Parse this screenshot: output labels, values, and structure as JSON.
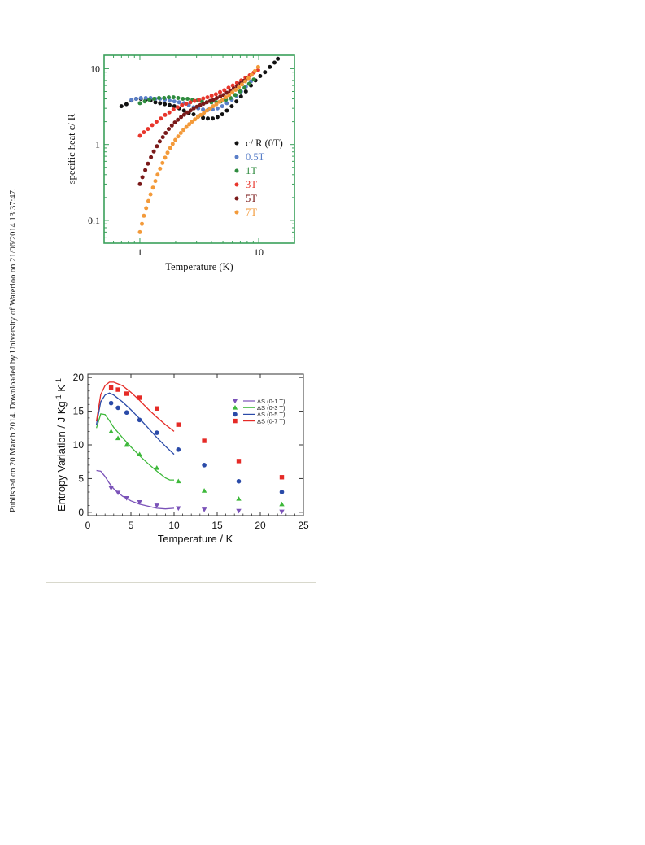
{
  "side_note": "Published on 20 March 2014. Downloaded by University of Waterloo on 21/06/2014 13:37:47.",
  "chart_data": [
    {
      "type": "scatter",
      "title": "",
      "xlabel": "Temperature (K)",
      "ylabel": "specific heat c/ R",
      "xscale": "log",
      "yscale": "log",
      "xlim": [
        0.5,
        20
      ],
      "ylim": [
        0.05,
        15
      ],
      "xticks": [
        1,
        10
      ],
      "xtick_labels": [
        "1",
        "10"
      ],
      "yticks": [
        0.1,
        1,
        10
      ],
      "ytick_labels": [
        "0.1",
        "1",
        "10"
      ],
      "grid": false,
      "legend_position": "right-middle",
      "frame_color": "#3aa05a",
      "series": [
        {
          "name": "c/ R (0T)",
          "color": "#111111",
          "x": [
            0.7,
            0.77,
            0.85,
            0.93,
            1.02,
            1.12,
            1.23,
            1.35,
            1.48,
            1.62,
            1.78,
            1.95,
            2.14,
            2.35,
            2.58,
            2.83,
            3.1,
            3.4,
            3.73,
            4.1,
            4.5,
            4.93,
            5.4,
            5.93,
            6.5,
            7.1,
            7.8,
            8.6,
            9.4,
            10.3,
            11.3,
            12.4,
            13.6,
            14.5
          ],
          "y": [
            3.2,
            3.4,
            3.8,
            4.0,
            4.0,
            3.9,
            3.8,
            3.6,
            3.5,
            3.4,
            3.3,
            3.2,
            3.0,
            2.8,
            2.6,
            2.5,
            2.35,
            2.25,
            2.2,
            2.2,
            2.3,
            2.5,
            2.8,
            3.2,
            3.7,
            4.3,
            5.0,
            6.0,
            7.0,
            8.0,
            9.0,
            10.5,
            12.0,
            13.5
          ]
        },
        {
          "name": "0.5T",
          "color": "#5a7fc8",
          "x": [
            0.85,
            0.93,
            1.02,
            1.12,
            1.23,
            1.35,
            1.48,
            1.62,
            1.78,
            1.95,
            2.14,
            2.35,
            2.58,
            2.83,
            3.1,
            3.4,
            3.73,
            4.1,
            4.5,
            4.93,
            5.4,
            5.93,
            6.5,
            7.1,
            7.8,
            8.6
          ],
          "y": [
            3.9,
            4.0,
            4.1,
            4.1,
            4.1,
            4.0,
            4.0,
            3.9,
            3.8,
            3.7,
            3.6,
            3.5,
            3.3,
            3.1,
            3.0,
            2.9,
            2.85,
            2.9,
            3.0,
            3.2,
            3.5,
            3.9,
            4.4,
            5.0,
            5.8,
            6.8
          ]
        },
        {
          "name": "1T",
          "color": "#2e8b3e",
          "x": [
            1.0,
            1.1,
            1.2,
            1.32,
            1.45,
            1.6,
            1.75,
            1.92,
            2.1,
            2.3,
            2.52,
            2.77,
            3.04,
            3.33,
            3.65,
            4.0,
            4.4,
            4.8,
            5.3,
            5.8,
            6.35,
            6.95,
            7.6,
            8.3,
            9.1
          ],
          "y": [
            3.5,
            3.7,
            3.9,
            4.0,
            4.1,
            4.1,
            4.2,
            4.2,
            4.1,
            4.0,
            4.0,
            3.9,
            3.8,
            3.7,
            3.6,
            3.6,
            3.6,
            3.7,
            3.9,
            4.1,
            4.5,
            5.0,
            5.6,
            6.3,
            7.2
          ]
        },
        {
          "name": "3T",
          "color": "#e8362c",
          "x": [
            1.0,
            1.08,
            1.17,
            1.27,
            1.38,
            1.5,
            1.63,
            1.77,
            1.92,
            2.08,
            2.26,
            2.45,
            2.66,
            2.89,
            3.14,
            3.41,
            3.7,
            4.02,
            4.36,
            4.73,
            5.14,
            5.58,
            6.05,
            6.57,
            7.13,
            7.74,
            8.4,
            9.1,
            9.9
          ],
          "y": [
            1.3,
            1.45,
            1.6,
            1.8,
            2.0,
            2.2,
            2.45,
            2.65,
            2.9,
            3.1,
            3.3,
            3.45,
            3.6,
            3.75,
            3.9,
            4.05,
            4.2,
            4.4,
            4.6,
            4.9,
            5.2,
            5.6,
            6.0,
            6.5,
            7.0,
            7.6,
            8.2,
            8.9,
            9.6
          ]
        },
        {
          "name": "5T",
          "color": "#7a1a1a",
          "x": [
            1.0,
            1.05,
            1.11,
            1.17,
            1.24,
            1.31,
            1.39,
            1.47,
            1.56,
            1.65,
            1.75,
            1.86,
            1.97,
            2.09,
            2.22,
            2.36,
            2.51,
            2.67,
            2.84,
            3.02,
            3.22,
            3.43,
            3.66,
            3.9,
            4.16,
            4.44,
            4.74,
            5.06,
            5.4,
            5.77,
            6.16,
            6.58,
            7.03,
            7.5,
            8.0
          ],
          "y": [
            0.3,
            0.37,
            0.46,
            0.56,
            0.68,
            0.81,
            0.95,
            1.1,
            1.25,
            1.42,
            1.6,
            1.78,
            1.95,
            2.12,
            2.3,
            2.47,
            2.65,
            2.82,
            3.0,
            3.15,
            3.3,
            3.45,
            3.6,
            3.75,
            3.9,
            4.1,
            4.3,
            4.5,
            4.8,
            5.1,
            5.5,
            5.9,
            6.4,
            6.9,
            7.5
          ]
        },
        {
          "name": "7T",
          "color": "#f39a3a",
          "x": [
            1.0,
            1.04,
            1.08,
            1.13,
            1.18,
            1.23,
            1.29,
            1.35,
            1.41,
            1.48,
            1.55,
            1.63,
            1.71,
            1.8,
            1.89,
            1.99,
            2.1,
            2.21,
            2.33,
            2.46,
            2.6,
            2.75,
            2.91,
            3.08,
            3.26,
            3.46,
            3.67,
            3.9,
            4.14,
            4.4,
            4.68,
            4.98,
            5.3,
            5.64,
            6.0,
            6.39,
            6.8,
            7.24,
            7.7,
            8.2,
            8.73,
            9.3,
            9.9
          ],
          "y": [
            0.07,
            0.09,
            0.115,
            0.145,
            0.18,
            0.22,
            0.27,
            0.33,
            0.4,
            0.48,
            0.57,
            0.67,
            0.78,
            0.9,
            1.02,
            1.15,
            1.28,
            1.42,
            1.56,
            1.7,
            1.85,
            2.0,
            2.15,
            2.3,
            2.45,
            2.62,
            2.8,
            3.0,
            3.2,
            3.4,
            3.65,
            3.9,
            4.2,
            4.5,
            4.85,
            5.25,
            5.7,
            6.2,
            6.8,
            7.5,
            8.3,
            9.3,
            10.5
          ]
        }
      ]
    },
    {
      "type": "scatter",
      "title": "",
      "xlabel": "Temperature / K",
      "ylabel_parts": [
        "Entropy Variation / J Kg",
        "-1",
        " K",
        "-1"
      ],
      "xlim": [
        0,
        25
      ],
      "ylim": [
        -0.5,
        20.5
      ],
      "xticks": [
        0,
        5,
        10,
        15,
        20,
        25
      ],
      "xtick_labels": [
        "0",
        "5",
        "10",
        "15",
        "20",
        "25"
      ],
      "yticks": [
        0,
        5,
        10,
        15,
        20
      ],
      "ytick_labels": [
        "0",
        "5",
        "10",
        "15",
        "20"
      ],
      "grid": false,
      "legend_position": "top-right",
      "series": [
        {
          "name": "ΔS (0-1 T)",
          "color": "#7a52b8",
          "marker": "triangle-down",
          "points_x": [
            2.7,
            3.5,
            4.5,
            6.0,
            8.0,
            10.5,
            13.5,
            17.5,
            22.5
          ],
          "points_y": [
            3.6,
            2.9,
            2.1,
            1.5,
            1.0,
            0.6,
            0.4,
            0.2,
            0.1
          ],
          "curve_x": [
            1.0,
            1.5,
            2.0,
            2.5,
            3.0,
            4.0,
            5.0,
            6.0,
            7.0,
            8.0,
            9.0,
            10.0
          ],
          "curve_y": [
            6.2,
            6.1,
            5.3,
            4.3,
            3.5,
            2.4,
            1.7,
            1.2,
            0.9,
            0.6,
            0.5,
            0.6
          ]
        },
        {
          "name": "ΔS (0-3 T)",
          "color": "#3db83a",
          "marker": "triangle-up",
          "points_x": [
            2.7,
            3.5,
            4.5,
            6.0,
            8.0,
            10.5,
            13.5,
            17.5,
            22.5
          ],
          "points_y": [
            12.0,
            11.0,
            10.0,
            8.6,
            6.6,
            4.6,
            3.2,
            2.0,
            1.2
          ],
          "curve_x": [
            1.0,
            1.5,
            2.0,
            2.5,
            3.0,
            4.0,
            5.0,
            6.0,
            7.0,
            8.0,
            9.0,
            9.5,
            10.0
          ],
          "curve_y": [
            12.5,
            14.6,
            14.5,
            13.6,
            12.6,
            11.1,
            9.7,
            8.4,
            7.2,
            6.1,
            5.1,
            4.8,
            4.8
          ]
        },
        {
          "name": "ΔS (0-5 T)",
          "color": "#2a4aa8",
          "marker": "circle",
          "points_x": [
            2.7,
            3.5,
            4.5,
            6.0,
            8.0,
            10.5,
            13.5,
            17.5,
            22.5
          ],
          "points_y": [
            16.2,
            15.5,
            14.8,
            13.7,
            11.8,
            9.3,
            7.0,
            4.6,
            3.0
          ],
          "curve_x": [
            1.0,
            1.5,
            2.0,
            2.5,
            3.0,
            4.0,
            5.0,
            6.0,
            7.0,
            8.0,
            9.0,
            10.0
          ],
          "curve_y": [
            13.0,
            16.4,
            17.4,
            17.7,
            17.4,
            16.4,
            15.2,
            13.9,
            12.5,
            11.1,
            9.8,
            8.6
          ]
        },
        {
          "name": "ΔS (0-7 T)",
          "color": "#e52a26",
          "marker": "square",
          "points_x": [
            2.7,
            3.5,
            4.5,
            6.0,
            8.0,
            10.5,
            13.5,
            17.5,
            22.5
          ],
          "points_y": [
            18.5,
            18.2,
            17.6,
            17.0,
            15.4,
            13.0,
            10.6,
            7.6,
            5.2
          ],
          "curve_x": [
            1.0,
            1.5,
            2.0,
            2.5,
            3.0,
            4.0,
            5.0,
            6.0,
            7.0,
            8.0,
            9.0,
            10.0
          ],
          "curve_y": [
            13.5,
            17.5,
            18.8,
            19.3,
            19.3,
            18.8,
            17.8,
            16.6,
            15.3,
            14.1,
            13.0,
            12.0
          ]
        }
      ]
    }
  ]
}
